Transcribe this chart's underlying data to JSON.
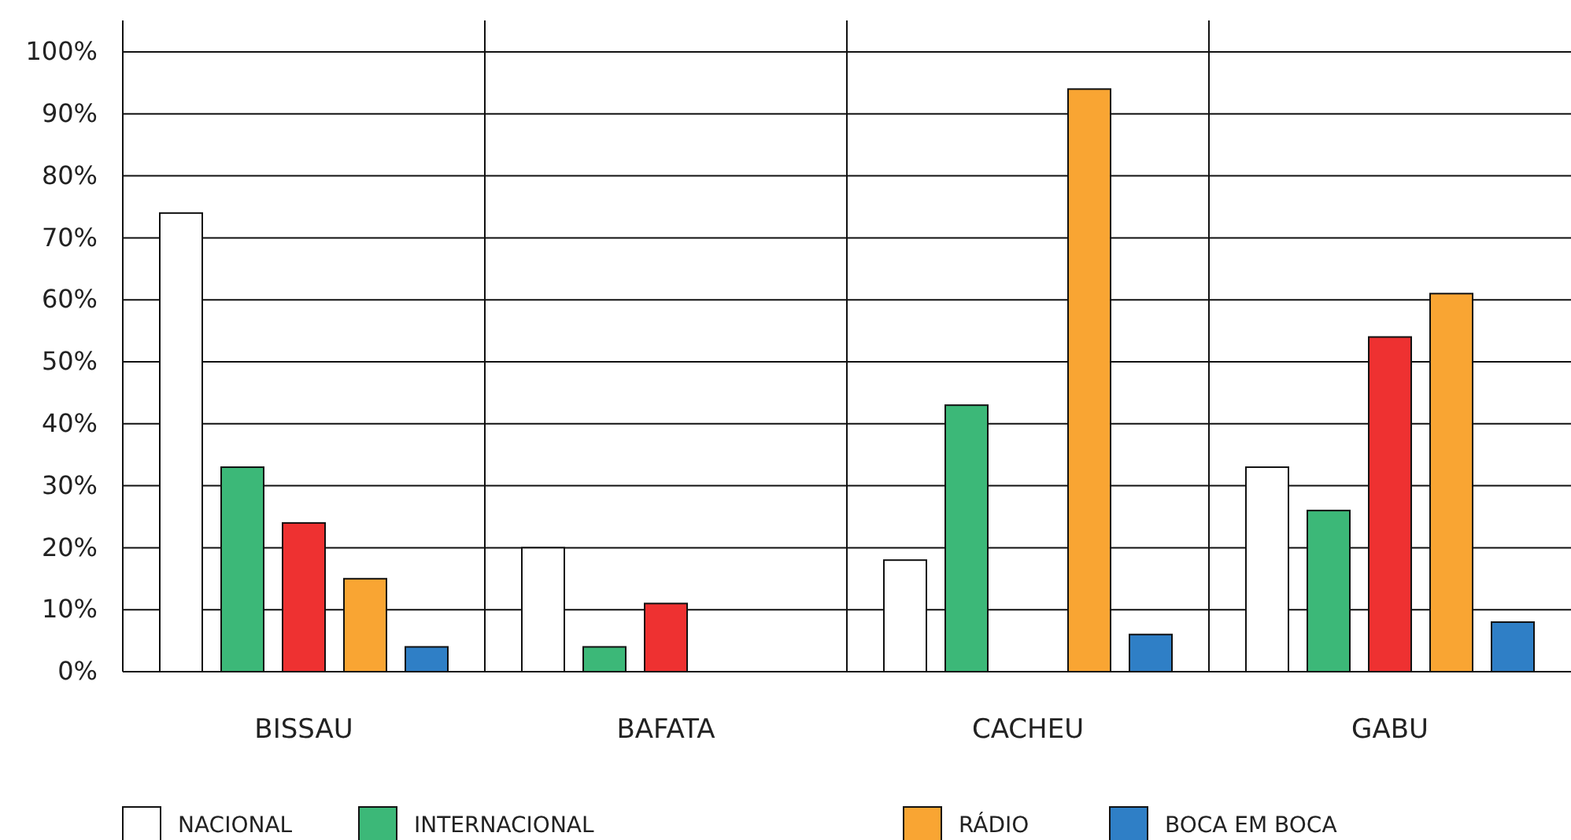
{
  "chart_data": {
    "type": "bar",
    "categories": [
      "BISSAU",
      "BAFATA",
      "CACHEU",
      "GABU"
    ],
    "series": [
      {
        "name": "NACIONAL",
        "color": "#ffffff",
        "values": [
          74,
          20,
          18,
          33
        ]
      },
      {
        "name": "INTERNACIONAL",
        "color": "#3cb878",
        "values": [
          33,
          4,
          43,
          26
        ]
      },
      {
        "color": "#ee3131",
        "values": [
          24,
          11,
          null,
          54
        ]
      },
      {
        "name": "RÁDIO",
        "color": "#f9a533",
        "values": [
          15,
          null,
          94,
          61
        ]
      },
      {
        "name": "BOCA EM BOCA",
        "color": "#2f7fc6",
        "values": [
          4,
          null,
          6,
          8
        ]
      }
    ],
    "ylim": [
      0,
      100
    ],
    "yticks": [
      {
        "value": 0,
        "label": "0%"
      },
      {
        "value": 10,
        "label": "10%"
      },
      {
        "value": 20,
        "label": "20%"
      },
      {
        "value": 30,
        "label": "30%"
      },
      {
        "value": 40,
        "label": "40%"
      },
      {
        "value": 50,
        "label": "50%"
      },
      {
        "value": 60,
        "label": "60%"
      },
      {
        "value": 70,
        "label": "70%"
      },
      {
        "value": 80,
        "label": "80%"
      },
      {
        "value": 90,
        "label": "90%"
      },
      {
        "value": 100,
        "label": "100%"
      }
    ],
    "grid": "y",
    "legend": "bottom"
  }
}
